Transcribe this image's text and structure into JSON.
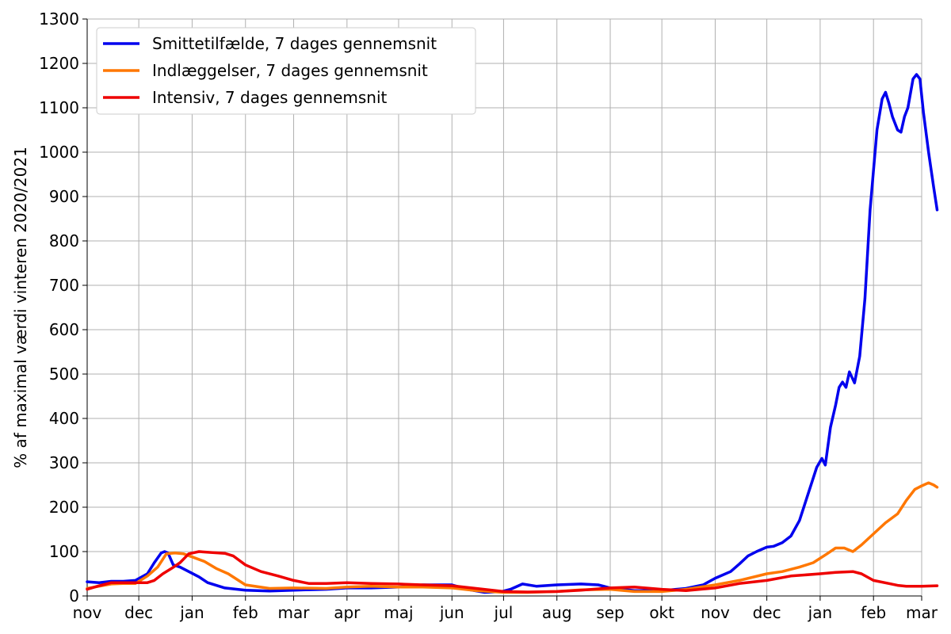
{
  "chart_data": {
    "type": "line",
    "title": "",
    "xlabel": "",
    "ylabel": "% af maximal værdi vinteren 2020/2021",
    "ylim": [
      0,
      1300
    ],
    "yticks": [
      0,
      100,
      200,
      300,
      400,
      500,
      600,
      700,
      800,
      900,
      1000,
      1100,
      1200,
      1300
    ],
    "x_tick_labels": [
      "nov",
      "dec",
      "jan",
      "feb",
      "mar",
      "apr",
      "maj",
      "jun",
      "jul",
      "aug",
      "sep",
      "okt",
      "nov",
      "dec",
      "jan",
      "feb",
      "mar"
    ],
    "x_ticks": [
      "2020-11-01",
      "2020-12-01",
      "2021-01-01",
      "2021-02-01",
      "2021-03-01",
      "2021-04-01",
      "2021-05-01",
      "2021-06-01",
      "2021-07-01",
      "2021-08-01",
      "2021-09-01",
      "2021-10-01",
      "2021-11-01",
      "2021-12-01",
      "2022-01-01",
      "2022-02-01",
      "2022-03-01"
    ],
    "xlim": [
      "2020-11-01",
      "2022-03-01"
    ],
    "grid": true,
    "legend_position": "top-left",
    "series": [
      {
        "name": "Smittetilfælde, 7 dages gennemsnit",
        "color": "#0000ee",
        "points": [
          [
            "2020-11-01",
            32
          ],
          [
            "2020-11-08",
            30
          ],
          [
            "2020-11-15",
            33
          ],
          [
            "2020-11-22",
            33
          ],
          [
            "2020-11-29",
            35
          ],
          [
            "2020-12-06",
            50
          ],
          [
            "2020-12-10",
            75
          ],
          [
            "2020-12-14",
            97
          ],
          [
            "2020-12-16",
            100
          ],
          [
            "2020-12-18",
            97
          ],
          [
            "2020-12-21",
            70
          ],
          [
            "2020-12-25",
            65
          ],
          [
            "2020-12-30",
            55
          ],
          [
            "2021-01-05",
            43
          ],
          [
            "2021-01-10",
            30
          ],
          [
            "2021-01-20",
            18
          ],
          [
            "2021-02-01",
            13
          ],
          [
            "2021-02-15",
            11
          ],
          [
            "2021-03-01",
            13
          ],
          [
            "2021-03-20",
            15
          ],
          [
            "2021-04-01",
            18
          ],
          [
            "2021-04-15",
            18
          ],
          [
            "2021-05-01",
            20
          ],
          [
            "2021-05-15",
            25
          ],
          [
            "2021-06-01",
            25
          ],
          [
            "2021-06-10",
            15
          ],
          [
            "2021-06-20",
            8
          ],
          [
            "2021-06-30",
            10
          ],
          [
            "2021-07-05",
            15
          ],
          [
            "2021-07-12",
            27
          ],
          [
            "2021-07-20",
            22
          ],
          [
            "2021-08-01",
            25
          ],
          [
            "2021-08-15",
            27
          ],
          [
            "2021-08-25",
            25
          ],
          [
            "2021-09-01",
            18
          ],
          [
            "2021-09-15",
            12
          ],
          [
            "2021-10-01",
            12
          ],
          [
            "2021-10-15",
            17
          ],
          [
            "2021-10-25",
            25
          ],
          [
            "2021-11-01",
            40
          ],
          [
            "2021-11-10",
            55
          ],
          [
            "2021-11-15",
            72
          ],
          [
            "2021-11-20",
            90
          ],
          [
            "2021-11-25",
            100
          ],
          [
            "2021-12-01",
            110
          ],
          [
            "2021-12-05",
            112
          ],
          [
            "2021-12-10",
            120
          ],
          [
            "2021-12-15",
            135
          ],
          [
            "2021-12-20",
            170
          ],
          [
            "2021-12-25",
            230
          ],
          [
            "2021-12-30",
            290
          ],
          [
            "2022-01-02",
            310
          ],
          [
            "2022-01-04",
            295
          ],
          [
            "2022-01-07",
            380
          ],
          [
            "2022-01-10",
            430
          ],
          [
            "2022-01-12",
            470
          ],
          [
            "2022-01-14",
            482
          ],
          [
            "2022-01-16",
            470
          ],
          [
            "2022-01-18",
            505
          ],
          [
            "2022-01-21",
            480
          ],
          [
            "2022-01-24",
            540
          ],
          [
            "2022-01-27",
            670
          ],
          [
            "2022-01-30",
            870
          ],
          [
            "2022-02-03",
            1050
          ],
          [
            "2022-02-06",
            1120
          ],
          [
            "2022-02-08",
            1135
          ],
          [
            "2022-02-10",
            1110
          ],
          [
            "2022-02-12",
            1080
          ],
          [
            "2022-02-15",
            1050
          ],
          [
            "2022-02-17",
            1045
          ],
          [
            "2022-02-19",
            1080
          ],
          [
            "2022-02-21",
            1100
          ],
          [
            "2022-02-24",
            1165
          ],
          [
            "2022-02-26",
            1175
          ],
          [
            "2022-02-28",
            1165
          ],
          [
            "2022-03-02",
            1090
          ],
          [
            "2022-03-05",
            1000
          ],
          [
            "2022-03-08",
            920
          ],
          [
            "2022-03-10",
            870
          ]
        ]
      },
      {
        "name": "Indlæggelser, 7 dages gennemsnit",
        "color": "#ff7700",
        "points": [
          [
            "2020-11-01",
            17
          ],
          [
            "2020-11-08",
            22
          ],
          [
            "2020-11-15",
            27
          ],
          [
            "2020-11-22",
            28
          ],
          [
            "2020-11-29",
            28
          ],
          [
            "2020-12-06",
            45
          ],
          [
            "2020-12-12",
            65
          ],
          [
            "2020-12-17",
            95
          ],
          [
            "2020-12-22",
            97
          ],
          [
            "2020-12-27",
            95
          ],
          [
            "2021-01-01",
            88
          ],
          [
            "2021-01-08",
            78
          ],
          [
            "2021-01-15",
            62
          ],
          [
            "2021-01-22",
            50
          ],
          [
            "2021-02-01",
            25
          ],
          [
            "2021-02-15",
            17
          ],
          [
            "2021-03-01",
            18
          ],
          [
            "2021-03-20",
            17
          ],
          [
            "2021-04-01",
            20
          ],
          [
            "2021-04-15",
            22
          ],
          [
            "2021-05-01",
            20
          ],
          [
            "2021-05-15",
            20
          ],
          [
            "2021-06-01",
            18
          ],
          [
            "2021-06-15",
            12
          ],
          [
            "2021-07-01",
            8
          ],
          [
            "2021-07-15",
            8
          ],
          [
            "2021-08-01",
            10
          ],
          [
            "2021-08-15",
            14
          ],
          [
            "2021-09-01",
            15
          ],
          [
            "2021-09-15",
            10
          ],
          [
            "2021-10-01",
            10
          ],
          [
            "2021-10-15",
            15
          ],
          [
            "2021-11-01",
            25
          ],
          [
            "2021-11-15",
            35
          ],
          [
            "2021-12-01",
            50
          ],
          [
            "2021-12-10",
            55
          ],
          [
            "2021-12-20",
            65
          ],
          [
            "2021-12-28",
            75
          ],
          [
            "2022-01-05",
            95
          ],
          [
            "2022-01-10",
            108
          ],
          [
            "2022-01-15",
            108
          ],
          [
            "2022-01-20",
            100
          ],
          [
            "2022-01-25",
            115
          ],
          [
            "2022-02-01",
            140
          ],
          [
            "2022-02-08",
            165
          ],
          [
            "2022-02-15",
            185
          ],
          [
            "2022-02-20",
            215
          ],
          [
            "2022-02-25",
            240
          ],
          [
            "2022-03-01",
            248
          ],
          [
            "2022-03-05",
            255
          ],
          [
            "2022-03-08",
            250
          ],
          [
            "2022-03-10",
            245
          ]
        ]
      },
      {
        "name": "Intensiv, 7 dages gennemsnit",
        "color": "#ee0000",
        "points": [
          [
            "2020-11-01",
            15
          ],
          [
            "2020-11-08",
            23
          ],
          [
            "2020-11-15",
            30
          ],
          [
            "2020-11-22",
            30
          ],
          [
            "2020-11-29",
            30
          ],
          [
            "2020-12-06",
            30
          ],
          [
            "2020-12-10",
            35
          ],
          [
            "2020-12-15",
            50
          ],
          [
            "2020-12-20",
            62
          ],
          [
            "2020-12-25",
            75
          ],
          [
            "2020-12-30",
            95
          ],
          [
            "2021-01-05",
            100
          ],
          [
            "2021-01-12",
            98
          ],
          [
            "2021-01-20",
            96
          ],
          [
            "2021-01-25",
            90
          ],
          [
            "2021-02-01",
            70
          ],
          [
            "2021-02-10",
            55
          ],
          [
            "2021-02-20",
            45
          ],
          [
            "2021-03-01",
            35
          ],
          [
            "2021-03-10",
            28
          ],
          [
            "2021-03-20",
            28
          ],
          [
            "2021-04-01",
            30
          ],
          [
            "2021-04-15",
            28
          ],
          [
            "2021-05-01",
            27
          ],
          [
            "2021-05-15",
            25
          ],
          [
            "2021-06-01",
            23
          ],
          [
            "2021-06-15",
            17
          ],
          [
            "2021-07-01",
            10
          ],
          [
            "2021-07-15",
            9
          ],
          [
            "2021-08-01",
            10
          ],
          [
            "2021-08-15",
            13
          ],
          [
            "2021-09-01",
            18
          ],
          [
            "2021-09-15",
            20
          ],
          [
            "2021-10-01",
            15
          ],
          [
            "2021-10-15",
            12
          ],
          [
            "2021-11-01",
            18
          ],
          [
            "2021-11-15",
            28
          ],
          [
            "2021-12-01",
            35
          ],
          [
            "2021-12-15",
            45
          ],
          [
            "2022-01-01",
            50
          ],
          [
            "2022-01-10",
            53
          ],
          [
            "2022-01-20",
            55
          ],
          [
            "2022-01-25",
            50
          ],
          [
            "2022-02-01",
            35
          ],
          [
            "2022-02-10",
            28
          ],
          [
            "2022-02-15",
            24
          ],
          [
            "2022-02-20",
            22
          ],
          [
            "2022-03-01",
            22
          ],
          [
            "2022-03-10",
            23
          ]
        ]
      }
    ]
  }
}
